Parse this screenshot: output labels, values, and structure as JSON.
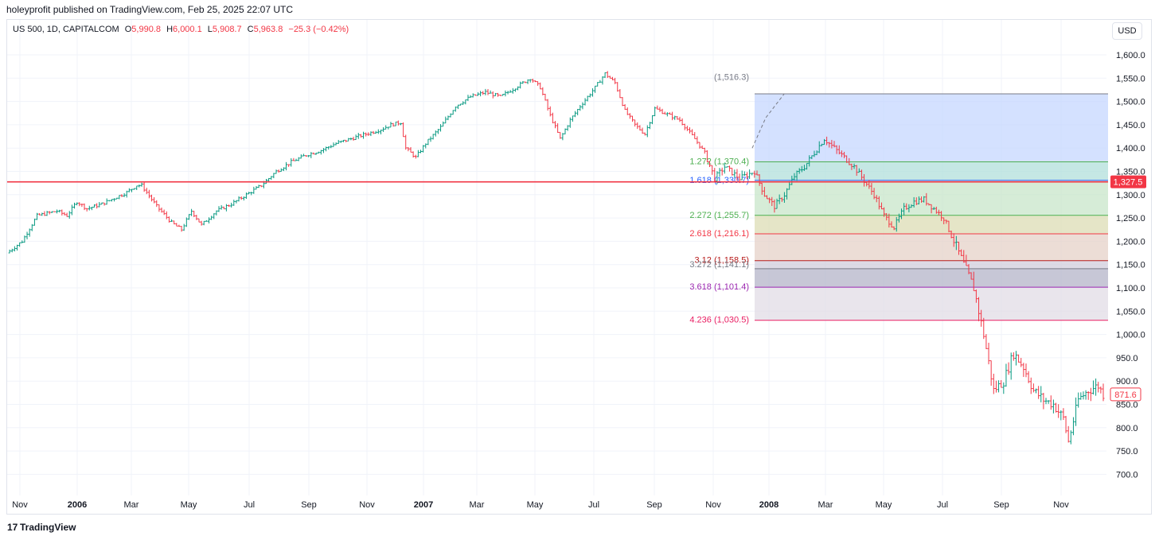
{
  "publisher": "holeyprofit published on TradingView.com, Feb 25, 2025 22:07 UTC",
  "legend": {
    "symbol": "US 500, 1D, CAPITALCOM",
    "open_label": "O",
    "open": "5,990.8",
    "high_label": "H",
    "high": "6,000.1",
    "low_label": "L",
    "low": "5,908.7",
    "close_label": "C",
    "close": "5,963.8",
    "change": "−25.3 (−0.42%)"
  },
  "currency": "USD",
  "footer": {
    "logo_text": "TradingView",
    "logo_mark": "17"
  },
  "colors": {
    "up": "#089981",
    "down": "#f23645",
    "hline": "#f23645",
    "grid": "#f0f3fa",
    "axis_text": "#131722"
  },
  "chart_data": {
    "type": "candlestick",
    "ylim": [
      650,
      1650
    ],
    "y_ticks": [
      "1,600.0",
      "1,550.0",
      "1,500.0",
      "1,450.0",
      "1,400.0",
      "1,350.0",
      "1,300.0",
      "1,250.0",
      "1,200.0",
      "1,150.0",
      "1,100.0",
      "1,050.0",
      "1,000.0",
      "950.0",
      "900.0",
      "850.0",
      "800.0",
      "750.0",
      "700.0"
    ],
    "x_ticks": [
      {
        "label": "Nov",
        "bold": false
      },
      {
        "label": "2006",
        "bold": true
      },
      {
        "label": "Mar",
        "bold": false
      },
      {
        "label": "May",
        "bold": false
      },
      {
        "label": "Jul",
        "bold": false
      },
      {
        "label": "Sep",
        "bold": false
      },
      {
        "label": "Nov",
        "bold": false
      },
      {
        "label": "2007",
        "bold": true
      },
      {
        "label": "Mar",
        "bold": false
      },
      {
        "label": "May",
        "bold": false
      },
      {
        "label": "Jul",
        "bold": false
      },
      {
        "label": "Sep",
        "bold": false
      },
      {
        "label": "Nov",
        "bold": false
      },
      {
        "label": "2008",
        "bold": true
      },
      {
        "label": "Mar",
        "bold": false
      },
      {
        "label": "May",
        "bold": false
      },
      {
        "label": "Jul",
        "bold": false
      },
      {
        "label": "Sep",
        "bold": false
      },
      {
        "label": "Nov",
        "bold": false
      }
    ],
    "horizontal_line": {
      "value": 1327.5,
      "label": "1,327.5"
    },
    "last_price": {
      "value": 871.6,
      "label": "871.6"
    },
    "fib_anchor_label": "(1,516.3)",
    "fib_levels": [
      {
        "ratio": "1.272",
        "price": 1370.4,
        "label": "1.272 (1,370.4)",
        "color": "#4caf50",
        "fill": "#b2dfdb"
      },
      {
        "ratio": "1.618",
        "price": 1330.7,
        "label": "1.618 (1,330.7)",
        "color": "#2962ff",
        "fill": "#c8e6c9"
      },
      {
        "ratio": "2.272",
        "price": 1255.7,
        "label": "2.272 (1,255.7)",
        "color": "#4caf50",
        "fill": "#dcdcb4"
      },
      {
        "ratio": "2.618",
        "price": 1216.1,
        "label": "2.618 (1,216.1)",
        "color": "#f23645",
        "fill": "#e6d2c8"
      },
      {
        "ratio": "3.12",
        "price": 1158.5,
        "label": "3.12 (1,158.5)",
        "color": "#b71c1c",
        "fill": "#d2cddc"
      },
      {
        "ratio": "3.272",
        "price": 1141.1,
        "label": "3.272 (1,141.1)",
        "color": "#787b86",
        "fill": "#b4b4c8"
      },
      {
        "ratio": "3.618",
        "price": 1101.4,
        "label": "3.618 (1,101.4)",
        "color": "#9c27b0",
        "fill": "#e1dce6"
      },
      {
        "ratio": "4.236",
        "price": 1030.5,
        "label": "4.236 (1,030.5)",
        "color": "#e91e63",
        "fill": "#e6c8c8"
      }
    ],
    "fib_top": 1516.3,
    "price_path": [
      [
        0,
        1175
      ],
      [
        3,
        1200
      ],
      [
        6,
        1255
      ],
      [
        10,
        1265
      ],
      [
        12,
        1255
      ],
      [
        14,
        1285
      ],
      [
        16,
        1270
      ],
      [
        19,
        1280
      ],
      [
        21,
        1290
      ],
      [
        24,
        1305
      ],
      [
        26,
        1320
      ],
      [
        27,
        1320
      ],
      [
        30,
        1275
      ],
      [
        33,
        1240
      ],
      [
        35,
        1225
      ],
      [
        37,
        1265
      ],
      [
        39,
        1235
      ],
      [
        42,
        1265
      ],
      [
        45,
        1280
      ],
      [
        48,
        1300
      ],
      [
        51,
        1320
      ],
      [
        54,
        1350
      ],
      [
        57,
        1370
      ],
      [
        60,
        1385
      ],
      [
        63,
        1395
      ],
      [
        66,
        1410
      ],
      [
        69,
        1420
      ],
      [
        72,
        1430
      ],
      [
        75,
        1440
      ],
      [
        77,
        1450
      ],
      [
        79,
        1455
      ],
      [
        80,
        1400
      ],
      [
        82,
        1380
      ],
      [
        84,
        1410
      ],
      [
        87,
        1445
      ],
      [
        90,
        1490
      ],
      [
        93,
        1510
      ],
      [
        96,
        1520
      ],
      [
        99,
        1510
      ],
      [
        102,
        1530
      ],
      [
        105,
        1550
      ],
      [
        107,
        1530
      ],
      [
        109,
        1470
      ],
      [
        111,
        1420
      ],
      [
        113,
        1460
      ],
      [
        115,
        1490
      ],
      [
        118,
        1530
      ],
      [
        120,
        1560
      ],
      [
        122,
        1540
      ],
      [
        124,
        1480
      ],
      [
        126,
        1450
      ],
      [
        128,
        1430
      ],
      [
        130,
        1485
      ],
      [
        132,
        1475
      ],
      [
        135,
        1460
      ],
      [
        138,
        1420
      ],
      [
        140,
        1390
      ],
      [
        142,
        1335
      ],
      [
        144,
        1360
      ],
      [
        147,
        1335
      ],
      [
        150,
        1350
      ],
      [
        152,
        1300
      ],
      [
        154,
        1275
      ],
      [
        156,
        1300
      ],
      [
        158,
        1340
      ],
      [
        160,
        1360
      ],
      [
        162,
        1390
      ],
      [
        164,
        1420
      ],
      [
        166,
        1400
      ],
      [
        168,
        1380
      ],
      [
        170,
        1360
      ],
      [
        172,
        1330
      ],
      [
        174,
        1300
      ],
      [
        176,
        1255
      ],
      [
        178,
        1230
      ],
      [
        180,
        1270
      ],
      [
        182,
        1285
      ],
      [
        184,
        1290
      ],
      [
        186,
        1270
      ],
      [
        188,
        1250
      ],
      [
        190,
        1200
      ],
      [
        192,
        1150
      ],
      [
        194,
        1100
      ],
      [
        196,
        1000
      ],
      [
        198,
        880
      ],
      [
        200,
        900
      ],
      [
        202,
        960
      ],
      [
        204,
        930
      ],
      [
        206,
        880
      ],
      [
        208,
        860
      ],
      [
        210,
        850
      ],
      [
        212,
        820
      ],
      [
        213,
        770
      ],
      [
        215,
        860
      ],
      [
        217,
        880
      ],
      [
        219,
        890
      ],
      [
        220,
        872
      ]
    ]
  }
}
